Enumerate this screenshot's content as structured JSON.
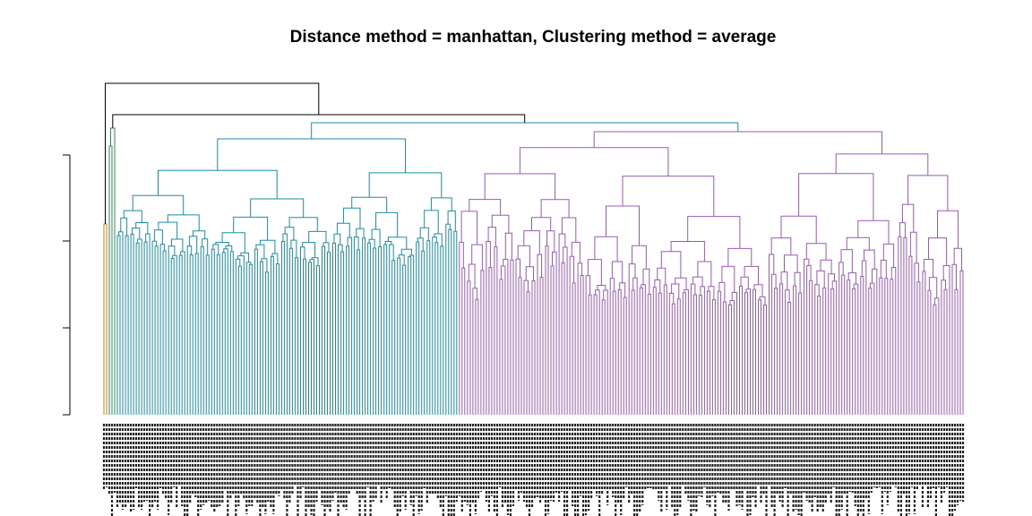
{
  "chart_data": {
    "type": "dendrogram",
    "title": "Distance method = manhattan, Clustering method = average",
    "xlabel": "",
    "ylabel": "",
    "y_ticks_count": 4,
    "grid": false,
    "leaf_count": 320,
    "leaf_labels_legible": false,
    "clusters": [
      {
        "color": "#b8860b",
        "leaf_count": 2
      },
      {
        "color": "#2e8b57",
        "leaf_count": 3
      },
      {
        "color": "#1b8ea3",
        "leaf_count": 127
      },
      {
        "color": "#9b59b6",
        "leaf_count": 188
      }
    ],
    "root_link_color": "#000000"
  }
}
